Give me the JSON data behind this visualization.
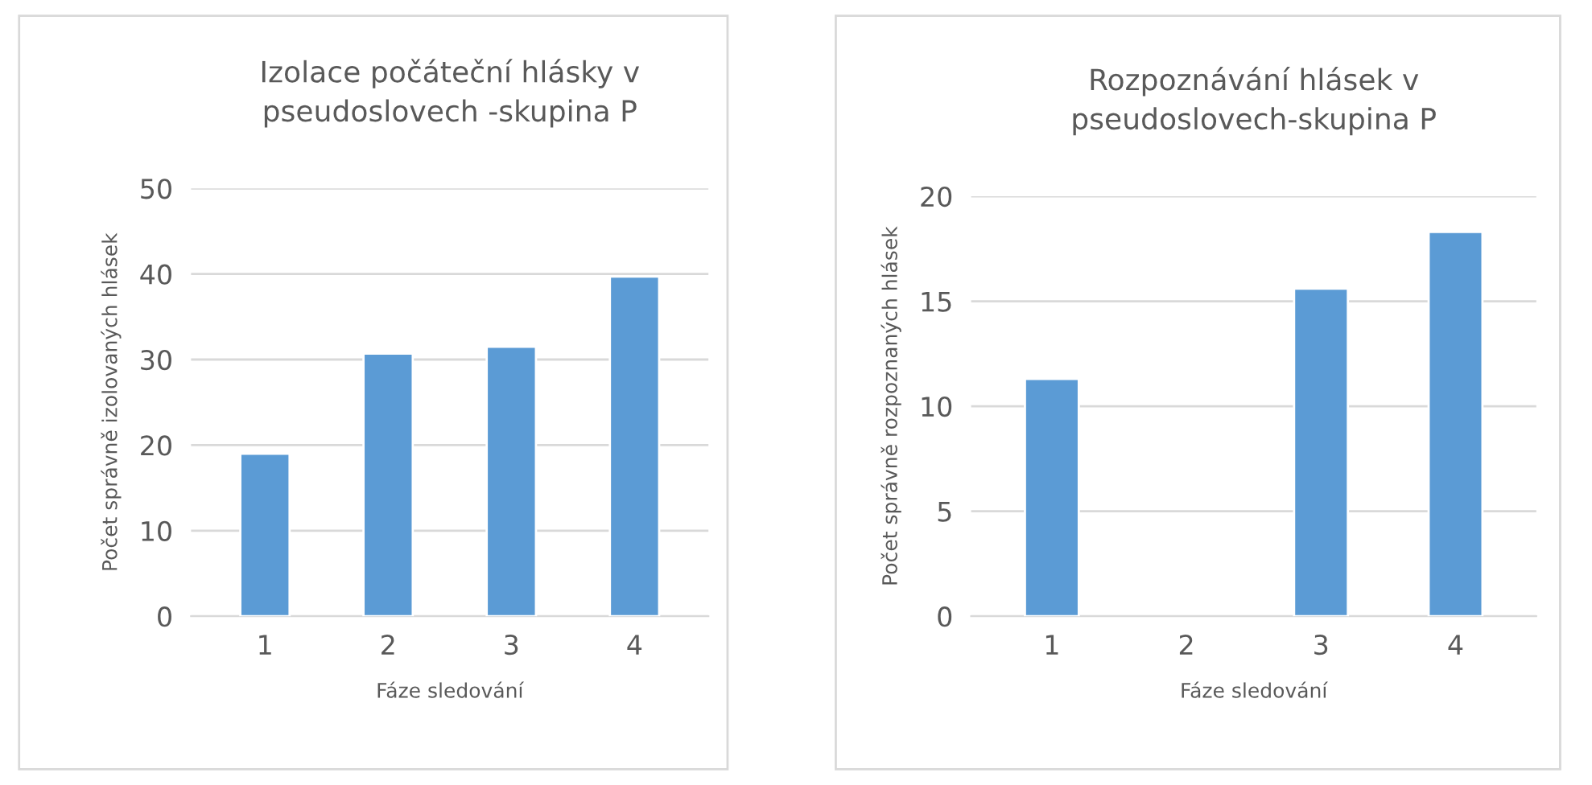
{
  "chart_data": [
    {
      "type": "bar",
      "title": "Izolace počáteční hlásky v\npseudoslovech -skupina P",
      "xlabel": "Fáze sledování",
      "ylabel": "Počet správně izolovaných hlásek",
      "categories": [
        "1",
        "2",
        "3",
        "4"
      ],
      "values": [
        19.0,
        30.7,
        31.5,
        39.7
      ],
      "color": "#5b9bd5",
      "ylim": [
        0,
        50
      ],
      "yticks": [
        0,
        10,
        20,
        30,
        40,
        50
      ],
      "grid": "y"
    },
    {
      "type": "bar",
      "title": "Rozpoznávání hlásek v\npseudoslovech-skupina P",
      "xlabel": "Fáze sledování",
      "ylabel": "Počet správně rozpoznaných hlásek",
      "categories": [
        "1",
        "2",
        "3",
        "4"
      ],
      "values": [
        11.3,
        null,
        15.6,
        18.3
      ],
      "color": "#5b9bd5",
      "ylim": [
        0,
        20
      ],
      "yticks": [
        0,
        5,
        10,
        15,
        20
      ],
      "grid": "y"
    }
  ]
}
